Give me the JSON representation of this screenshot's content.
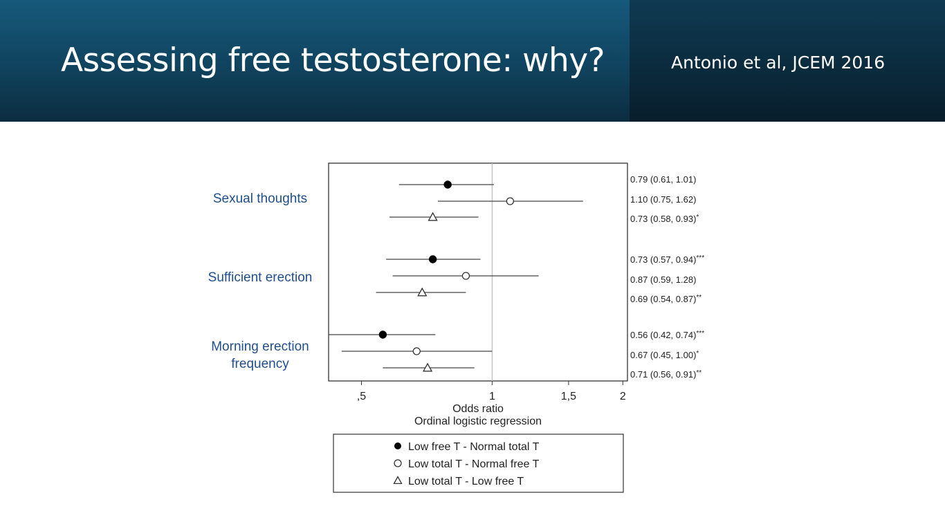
{
  "header": {
    "title": "Assessing free testosterone: why?",
    "citation": "Antonio et al, JCEM 2016"
  },
  "colors": {
    "header_bg": "#135272",
    "category_label": "#1f4e8c",
    "marker": "#000000",
    "axis": "#333333",
    "reference_line": "#bdbdbd"
  },
  "chart_data": {
    "type": "forest",
    "xlabel": "Odds ratio",
    "subtitle": "Ordinal logistic regression",
    "x_scale": "log",
    "xlim": [
      0.42,
      2.05
    ],
    "ticks": [
      {
        "value": 0.5,
        "label": ",5"
      },
      {
        "value": 1,
        "label": "1"
      },
      {
        "value": 1.5,
        "label": "1,5"
      },
      {
        "value": 2,
        "label": "2"
      }
    ],
    "reference_value": 1,
    "series": [
      {
        "name": "Low free T - Normal total T",
        "marker": "filled-circle"
      },
      {
        "name": "Low total T - Normal free T",
        "marker": "open-circle"
      },
      {
        "name": "Low total T - Low free T",
        "marker": "open-triangle"
      }
    ],
    "groups": [
      {
        "label_lines": [
          "Sexual thoughts"
        ],
        "rows": [
          {
            "series": 0,
            "or": 0.79,
            "lo": 0.61,
            "hi": 1.01,
            "text": "0.79 (0.61, 1.01)",
            "sig": ""
          },
          {
            "series": 1,
            "or": 1.1,
            "lo": 0.75,
            "hi": 1.62,
            "text": "1.10 (0.75, 1.62)",
            "sig": ""
          },
          {
            "series": 2,
            "or": 0.73,
            "lo": 0.58,
            "hi": 0.93,
            "text": "0.73 (0.58, 0.93)",
            "sig": "*"
          }
        ]
      },
      {
        "label_lines": [
          "Sufficient erection"
        ],
        "rows": [
          {
            "series": 0,
            "or": 0.73,
            "lo": 0.57,
            "hi": 0.94,
            "text": "0.73 (0.57, 0.94)",
            "sig": "***"
          },
          {
            "series": 1,
            "or": 0.87,
            "lo": 0.59,
            "hi": 1.28,
            "text": "0.87 (0.59, 1.28)",
            "sig": ""
          },
          {
            "series": 2,
            "or": 0.69,
            "lo": 0.54,
            "hi": 0.87,
            "text": "0.69 (0.54, 0.87)",
            "sig": "**"
          }
        ]
      },
      {
        "label_lines": [
          "Morning erection",
          "frequency"
        ],
        "rows": [
          {
            "series": 0,
            "or": 0.56,
            "lo": 0.42,
            "hi": 0.74,
            "text": "0.56 (0.42, 0.74)",
            "sig": "***"
          },
          {
            "series": 1,
            "or": 0.67,
            "lo": 0.45,
            "hi": 1.0,
            "text": "0.67 (0.45, 1.00)",
            "sig": "*"
          },
          {
            "series": 2,
            "or": 0.71,
            "lo": 0.56,
            "hi": 0.91,
            "text": "0.71 (0.56, 0.91)",
            "sig": "**"
          }
        ]
      }
    ]
  }
}
